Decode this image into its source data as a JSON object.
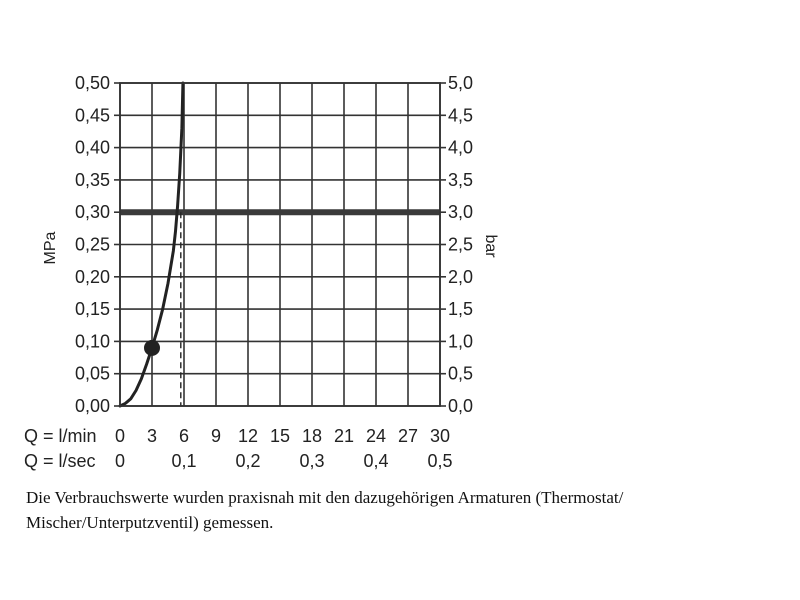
{
  "chart_data": {
    "type": "line",
    "title": "",
    "xlabel": "Q = l/min",
    "secondary_xlabel": "Q = l/sec",
    "ylabel": "MPa",
    "secondary_ylabel": "bar",
    "xlim": [
      0,
      30
    ],
    "ylim": [
      0,
      0.5
    ],
    "secondary_ylim": [
      0,
      5.0
    ],
    "grid": true,
    "x_ticks": [
      0,
      3,
      6,
      9,
      12,
      15,
      18,
      21,
      24,
      27,
      30
    ],
    "x_tick_labels": [
      "0",
      "3",
      "6",
      "9",
      "12",
      "15",
      "18",
      "21",
      "24",
      "27",
      "30"
    ],
    "secondary_x_ticks": [
      0,
      6,
      12,
      18,
      24,
      30
    ],
    "secondary_x_tick_labels": [
      "0",
      "0,1",
      "0,2",
      "0,3",
      "0,4",
      "0,5"
    ],
    "y_ticks": [
      0,
      0.05,
      0.1,
      0.15,
      0.2,
      0.25,
      0.3,
      0.35,
      0.4,
      0.45,
      0.5
    ],
    "y_tick_labels": [
      "0,00",
      "0,05",
      "0,10",
      "0,15",
      "0,20",
      "0,25",
      "0,30",
      "0,35",
      "0,40",
      "0,45",
      "0,50"
    ],
    "secondary_y_tick_labels": [
      "0,0",
      "0,5",
      "1,0",
      "1,5",
      "2,0",
      "2,5",
      "3,0",
      "3,5",
      "4,0",
      "4,5",
      "5,0"
    ],
    "series": [
      {
        "x": [
          0,
          0.5,
          1,
          1.5,
          2,
          2.5,
          3,
          3.5,
          4,
          4.5,
          5,
          5.2,
          5.4,
          5.6,
          5.8,
          5.9
        ],
        "y": [
          0,
          0.004,
          0.011,
          0.024,
          0.042,
          0.065,
          0.09,
          0.118,
          0.15,
          0.19,
          0.24,
          0.27,
          0.31,
          0.36,
          0.43,
          0.5
        ],
        "color": "#222222"
      }
    ],
    "reference_line": {
      "y": 0.3,
      "color": "#3a3a3a"
    },
    "marker": {
      "x": 3,
      "y": 0.09,
      "color": "#222222"
    },
    "dashed_drop": {
      "x": 5.7,
      "y": 0.3
    }
  },
  "caption": "Die Verbrauchswerte wurden praxisnah mit den dazugehörigen Armaturen (Thermostat/ Mischer/Unterputzventil) gemessen."
}
